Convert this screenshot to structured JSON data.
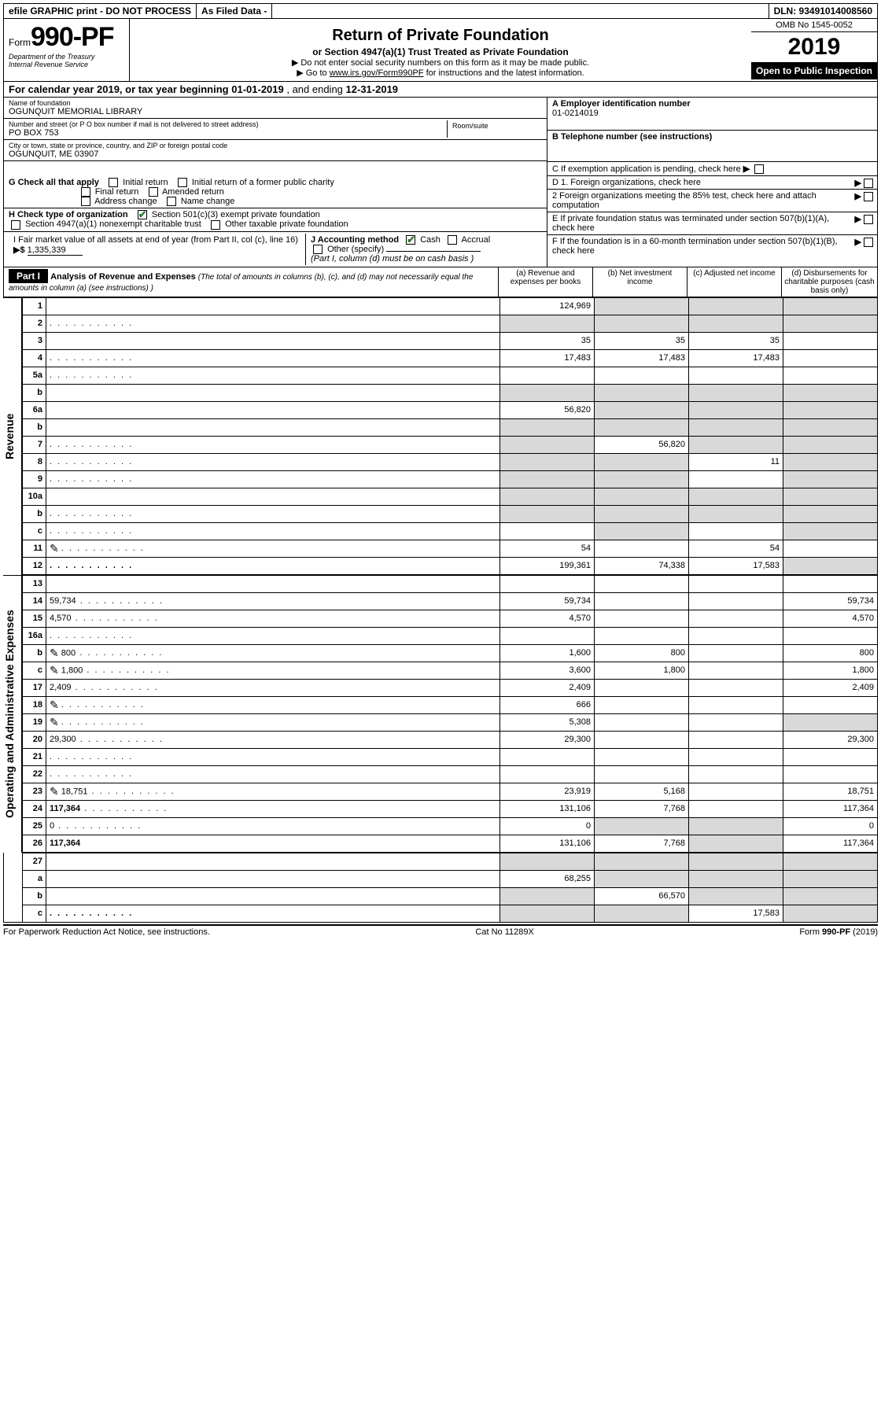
{
  "topbar": {
    "efile": "efile GRAPHIC print - DO NOT PROCESS",
    "asfiled": "As Filed Data -",
    "dln": "DLN: 93491014008560"
  },
  "header": {
    "form_prefix": "Form",
    "form_number": "990-PF",
    "dept1": "Department of the Treasury",
    "dept2": "Internal Revenue Service",
    "title": "Return of Private Foundation",
    "subtitle": "or Section 4947(a)(1) Trust Treated as Private Foundation",
    "note1": "▶ Do not enter social security numbers on this form as it may be made public.",
    "note2_pre": "▶ Go to ",
    "note2_link": "www.irs.gov/Form990PF",
    "note2_post": " for instructions and the latest information.",
    "omb": "OMB No 1545-0052",
    "year": "2019",
    "open": "Open to Public Inspection"
  },
  "calyear": {
    "prefix": "For calendar year 2019, or tax year beginning ",
    "begin": "01-01-2019",
    "mid": " , and ending ",
    "end": "12-31-2019"
  },
  "id": {
    "name_lbl": "Name of foundation",
    "name_val": "OGUNQUIT MEMORIAL LIBRARY",
    "addr_lbl": "Number and street (or P O  box number if mail is not delivered to street address)",
    "addr_val": "PO BOX 753",
    "room_lbl": "Room/suite",
    "city_lbl": "City or town, state or province, country, and ZIP or foreign postal code",
    "city_val": "OGUNQUIT, ME  03907",
    "a_lbl": "A Employer identification number",
    "a_val": "01-0214019",
    "b_lbl": "B Telephone number (see instructions)",
    "c_lbl": "C If exemption application is pending, check here"
  },
  "g": {
    "label": "G Check all that apply",
    "opts": [
      "Initial return",
      "Initial return of a former public charity",
      "Final return",
      "Amended return",
      "Address change",
      "Name change"
    ]
  },
  "h": {
    "label": "H Check type of organization",
    "opt1": "Section 501(c)(3) exempt private foundation",
    "opt2": "Section 4947(a)(1) nonexempt charitable trust",
    "opt3": "Other taxable private foundation"
  },
  "d": {
    "d1": "D 1. Foreign organizations, check here",
    "d2": "2 Foreign organizations meeting the 85% test, check here and attach computation"
  },
  "e": "E  If private foundation status was terminated under section 507(b)(1)(A), check here",
  "f": "F  If the foundation is in a 60-month termination under section 507(b)(1)(B), check here",
  "i": {
    "label": "I Fair market value of all assets at end of year (from Part II, col (c), line 16)",
    "arrow": "▶$",
    "value": "1,335,339"
  },
  "j": {
    "label": "J Accounting method",
    "cash": "Cash",
    "accrual": "Accrual",
    "other": "Other (specify)",
    "note": "(Part I, column (d) must be on cash basis )"
  },
  "part1": {
    "tag": "Part I",
    "title": "Analysis of Revenue and Expenses",
    "title_note": "(The total of amounts in columns (b), (c), and (d) may not necessarily equal the amounts in column (a) (see instructions) )",
    "col_a": "(a) Revenue and expenses per books",
    "col_b": "(b) Net investment income",
    "col_c": "(c) Adjusted net income",
    "col_d": "(d) Disbursements for charitable purposes (cash basis only)",
    "side_rev": "Revenue",
    "side_exp": "Operating and Administrative Expenses"
  },
  "rows": [
    {
      "n": "1",
      "d": "",
      "a": "124,969",
      "b": "",
      "c": "",
      "shade_bcd": true
    },
    {
      "n": "2",
      "d": "",
      "a": "",
      "b": "",
      "c": "",
      "dots": true,
      "shade_bcd": true,
      "shade_a": true
    },
    {
      "n": "3",
      "d": "",
      "a": "35",
      "b": "35",
      "c": "35"
    },
    {
      "n": "4",
      "d": "",
      "a": "17,483",
      "b": "17,483",
      "c": "17,483",
      "dots": true
    },
    {
      "n": "5a",
      "d": "",
      "a": "",
      "b": "",
      "c": "",
      "dots": true
    },
    {
      "n": "b",
      "d": "",
      "a": "",
      "b": "",
      "c": "",
      "shade_all": true,
      "inline_blank": true
    },
    {
      "n": "6a",
      "d": "",
      "a": "56,820",
      "b": "",
      "c": "",
      "shade_bcd": true
    },
    {
      "n": "b",
      "d": "",
      "a": "",
      "b": "",
      "c": "",
      "shade_all": true
    },
    {
      "n": "7",
      "d": "",
      "a": "",
      "b": "56,820",
      "c": "",
      "dots": true,
      "shade_a": true,
      "shade_cd": true
    },
    {
      "n": "8",
      "d": "",
      "a": "",
      "b": "",
      "c": "11",
      "dots": true,
      "shade_ab": true,
      "shade_d": true
    },
    {
      "n": "9",
      "d": "",
      "a": "",
      "b": "",
      "c": "",
      "dots": true,
      "shade_ab": true,
      "shade_d": true
    },
    {
      "n": "10a",
      "d": "",
      "a": "",
      "b": "",
      "c": "",
      "shade_all": true,
      "inline_blank": true
    },
    {
      "n": "b",
      "d": "",
      "a": "",
      "b": "",
      "c": "",
      "dots": true,
      "shade_all": true,
      "inline_blank": true
    },
    {
      "n": "c",
      "d": "",
      "a": "",
      "b": "",
      "c": "",
      "dots": true,
      "shade_b": true,
      "shade_d": true
    },
    {
      "n": "11",
      "d": "",
      "a": "54",
      "b": "",
      "c": "54",
      "dots": true,
      "icon": true
    },
    {
      "n": "12",
      "d": "",
      "a": "199,361",
      "b": "74,338",
      "c": "17,583",
      "dots": true,
      "bold": true,
      "shade_d": true
    }
  ],
  "exp_rows": [
    {
      "n": "13",
      "d": "",
      "a": "",
      "b": "",
      "c": ""
    },
    {
      "n": "14",
      "d": "59,734",
      "a": "59,734",
      "b": "",
      "c": "",
      "dots": true
    },
    {
      "n": "15",
      "d": "4,570",
      "a": "4,570",
      "b": "",
      "c": "",
      "dots": true
    },
    {
      "n": "16a",
      "d": "",
      "a": "",
      "b": "",
      "c": "",
      "dots": true
    },
    {
      "n": "b",
      "d": "800",
      "a": "1,600",
      "b": "800",
      "c": "",
      "dots": true,
      "icon": true
    },
    {
      "n": "c",
      "d": "1,800",
      "a": "3,600",
      "b": "1,800",
      "c": "",
      "dots": true,
      "icon": true
    },
    {
      "n": "17",
      "d": "2,409",
      "a": "2,409",
      "b": "",
      "c": "",
      "dots": true
    },
    {
      "n": "18",
      "d": "",
      "a": "666",
      "b": "",
      "c": "",
      "dots": true,
      "icon": true
    },
    {
      "n": "19",
      "d": "",
      "a": "5,308",
      "b": "",
      "c": "",
      "dots": true,
      "icon": true,
      "shade_d": true
    },
    {
      "n": "20",
      "d": "29,300",
      "a": "29,300",
      "b": "",
      "c": "",
      "dots": true
    },
    {
      "n": "21",
      "d": "",
      "a": "",
      "b": "",
      "c": "",
      "dots": true
    },
    {
      "n": "22",
      "d": "",
      "a": "",
      "b": "",
      "c": "",
      "dots": true
    },
    {
      "n": "23",
      "d": "18,751",
      "a": "23,919",
      "b": "5,168",
      "c": "",
      "dots": true,
      "icon": true
    },
    {
      "n": "24",
      "d": "117,364",
      "a": "131,106",
      "b": "7,768",
      "c": "",
      "dots": true,
      "bold_first": true
    },
    {
      "n": "25",
      "d": "0",
      "a": "0",
      "b": "",
      "c": "",
      "dots": true,
      "shade_bc": true
    },
    {
      "n": "26",
      "d": "117,364",
      "a": "131,106",
      "b": "7,768",
      "c": "",
      "bold": true,
      "shade_c": true
    }
  ],
  "bottom_rows": [
    {
      "n": "27",
      "d": "",
      "a": "",
      "b": "",
      "c": "",
      "shade_all": true
    },
    {
      "n": "a",
      "d": "",
      "a": "68,255",
      "b": "",
      "c": "",
      "bold": true,
      "shade_bcd": true
    },
    {
      "n": "b",
      "d": "",
      "a": "",
      "b": "66,570",
      "c": "",
      "bold": true,
      "shade_a": true,
      "shade_cd": true
    },
    {
      "n": "c",
      "d": "",
      "a": "",
      "b": "",
      "c": "17,583",
      "bold": true,
      "dots": true,
      "shade_ab": true,
      "shade_d": true
    }
  ],
  "footer": {
    "left": "For Paperwork Reduction Act Notice, see instructions.",
    "mid": "Cat No 11289X",
    "right": "Form 990-PF (2019)"
  }
}
